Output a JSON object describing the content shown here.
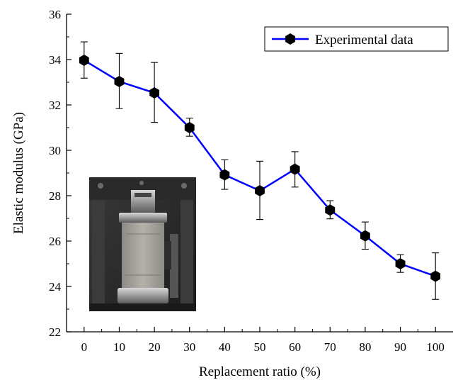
{
  "chart_data": {
    "type": "line",
    "xlabel": "Replacement ratio (%)",
    "ylabel": "Elastic modulus (GPa)",
    "xlim": [
      -5,
      105
    ],
    "ylim": [
      22,
      36
    ],
    "x_ticks": [
      0,
      10,
      20,
      30,
      40,
      50,
      60,
      70,
      80,
      90,
      100
    ],
    "y_ticks": [
      22,
      24,
      26,
      28,
      30,
      32,
      34,
      36
    ],
    "grid": false,
    "legend_position": "top-right",
    "series": [
      {
        "name": "Experimental data",
        "color": "#0000ff",
        "marker": "hexagon",
        "marker_color": "#000000",
        "x": [
          0,
          10,
          20,
          30,
          40,
          50,
          60,
          70,
          80,
          90,
          100
        ],
        "y": [
          33.97,
          33.03,
          32.53,
          31.0,
          28.92,
          28.22,
          29.17,
          27.37,
          26.23,
          25.0,
          24.45
        ],
        "error_upper": [
          34.78,
          34.27,
          33.87,
          31.42,
          29.58,
          29.52,
          29.94,
          27.78,
          26.84,
          25.4,
          25.48
        ],
        "error_lower": [
          33.18,
          31.84,
          31.23,
          30.62,
          28.28,
          26.95,
          28.38,
          26.98,
          25.64,
          24.62,
          23.43
        ]
      }
    ],
    "inset": {
      "kind": "photograph",
      "subject": "compression-test-photo"
    }
  }
}
